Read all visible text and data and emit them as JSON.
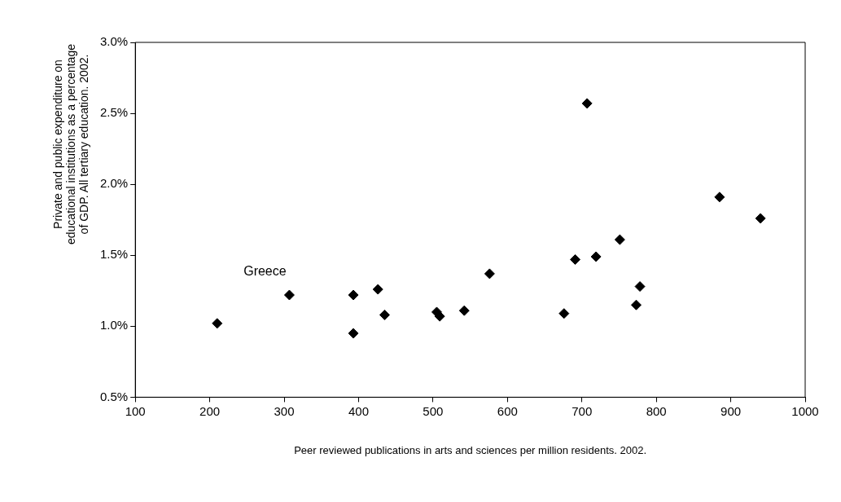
{
  "chart_data": {
    "type": "scatter",
    "xlabel": "Peer reviewed publications in arts and sciences per million residents. 2002.",
    "ylabel": "Private and public expenditure on educational institutions as a percentage of GDP. All tertiary education. 2002.",
    "annotations": [
      {
        "text": "Greece",
        "x": 307,
        "y": 1.22
      }
    ],
    "marker": "diamond",
    "grid": false,
    "legend": false,
    "xlim": [
      100,
      1000
    ],
    "xticks": [
      100,
      200,
      300,
      400,
      500,
      600,
      700,
      800,
      900,
      1000
    ],
    "ylim": [
      0.5,
      3.0
    ],
    "yticks": [
      {
        "value": 0.5,
        "label": "0.5%"
      },
      {
        "value": 1.0,
        "label": "1.0%"
      },
      {
        "value": 1.5,
        "label": "1.5%"
      },
      {
        "value": 2.0,
        "label": "2.0%"
      },
      {
        "value": 2.5,
        "label": "2.5%"
      },
      {
        "value": 3.0,
        "label": "3.0%"
      }
    ],
    "series": [
      {
        "color": "#000000",
        "x": [
          210,
          307,
          393,
          393,
          426,
          435,
          505,
          509,
          542,
          576,
          676,
          691,
          707,
          719,
          751,
          773,
          778,
          885,
          940
        ],
        "values": [
          1.02,
          1.22,
          1.22,
          0.95,
          1.26,
          1.08,
          1.1,
          1.07,
          1.11,
          1.37,
          1.09,
          1.47,
          2.57,
          1.49,
          1.61,
          1.15,
          1.28,
          1.91,
          1.76
        ]
      }
    ]
  }
}
